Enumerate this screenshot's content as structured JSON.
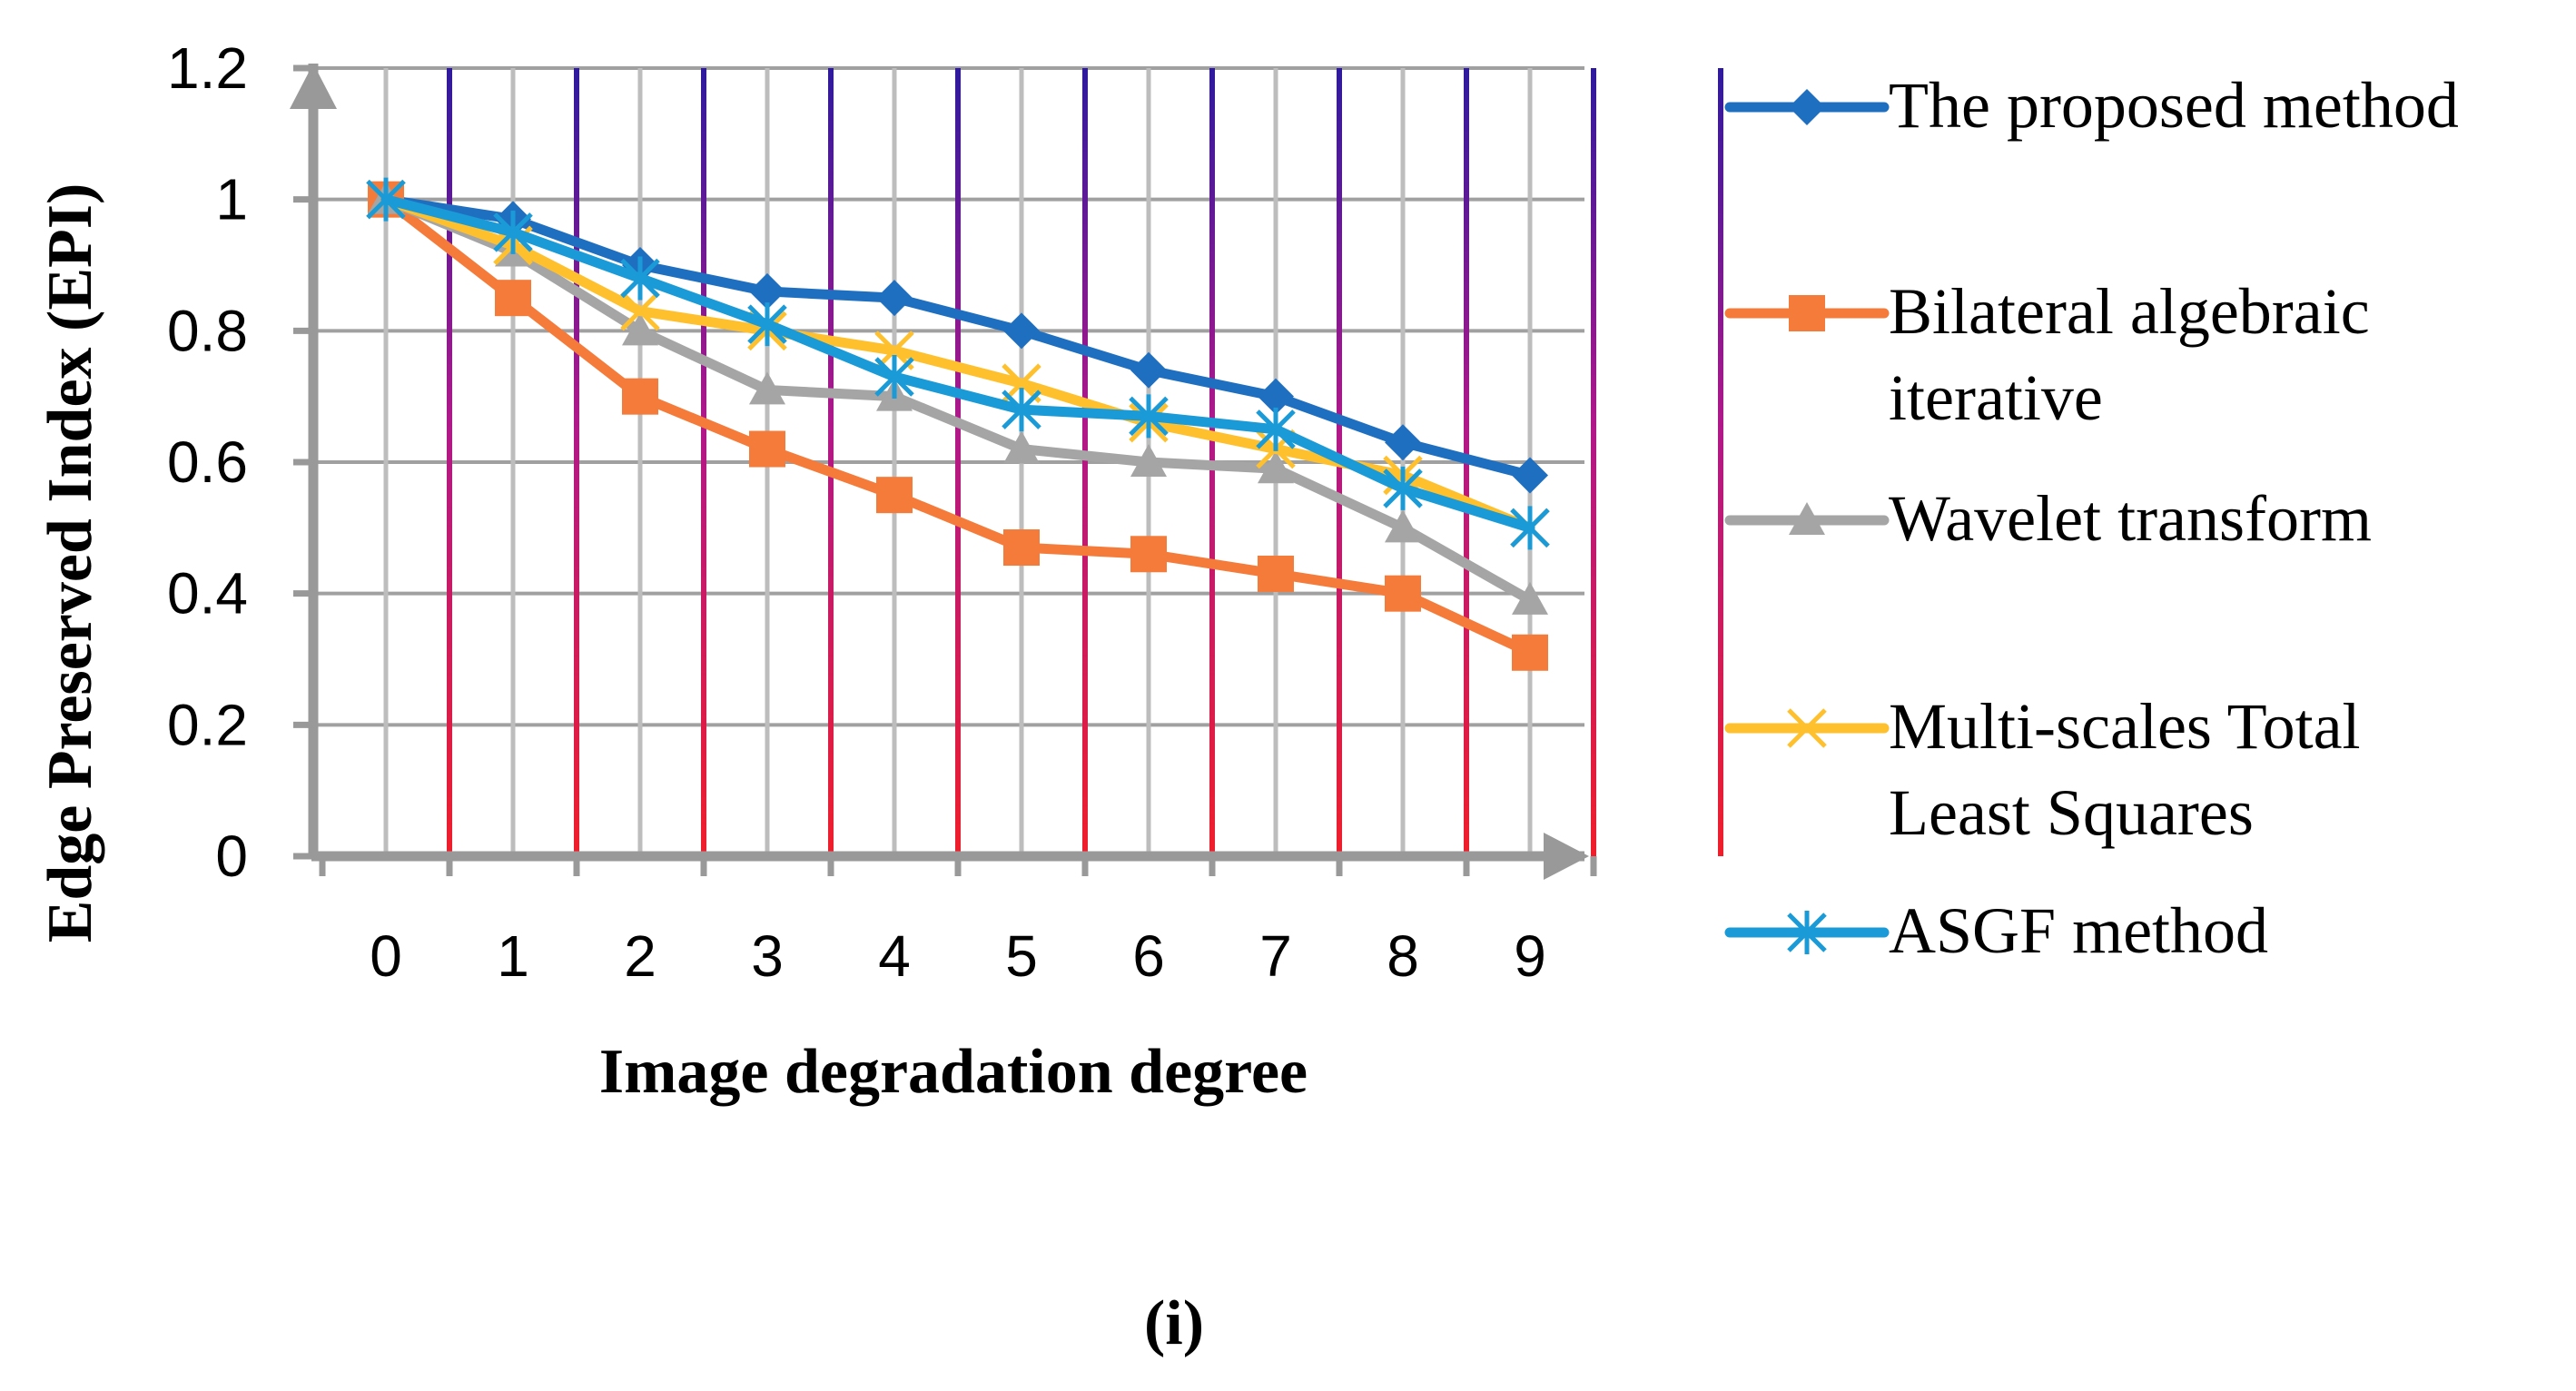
{
  "chart_data": {
    "type": "line",
    "title": "",
    "xlabel": "Image degradation degree",
    "ylabel": "Edge Preserved Index (EPI)",
    "x": [
      0,
      1,
      2,
      3,
      4,
      5,
      6,
      7,
      8,
      9
    ],
    "x_tick_labels": [
      "0",
      "1",
      "2",
      "3",
      "4",
      "5",
      "6",
      "7",
      "8",
      "9"
    ],
    "y_tick_labels": [
      "0",
      "0.2",
      "0.4",
      "0.6",
      "0.8",
      "1",
      "1.2"
    ],
    "ylim": [
      0,
      1.2
    ],
    "grid": true,
    "legend_position": "right",
    "series": [
      {
        "name": "The proposed method",
        "legend_lines": [
          "The proposed method"
        ],
        "color": "#1F6FC1",
        "marker": "diamond",
        "values": [
          1.0,
          0.97,
          0.9,
          0.86,
          0.85,
          0.8,
          0.74,
          0.7,
          0.63,
          0.58
        ]
      },
      {
        "name": "Bilateral algebraic iterative",
        "legend_lines": [
          "Bilateral algebraic",
          "iterative"
        ],
        "color": "#F47B3A",
        "marker": "square",
        "values": [
          1.0,
          0.85,
          0.7,
          0.62,
          0.55,
          0.47,
          0.46,
          0.43,
          0.4,
          0.31
        ]
      },
      {
        "name": "Wavelet transform",
        "legend_lines": [
          "Wavelet transform"
        ],
        "color": "#A5A5A5",
        "marker": "triangle",
        "values": [
          1.0,
          0.92,
          0.8,
          0.71,
          0.7,
          0.62,
          0.6,
          0.59,
          0.5,
          0.39
        ]
      },
      {
        "name": "Multi-scales Total Least Squares",
        "legend_lines": [
          "Multi-scales Total",
          "Least Squares"
        ],
        "color": "#FFC02E",
        "marker": "x",
        "values": [
          1.0,
          0.93,
          0.83,
          0.8,
          0.77,
          0.72,
          0.66,
          0.62,
          0.58,
          0.5
        ]
      },
      {
        "name": "ASGF method",
        "legend_lines": [
          "ASGF method"
        ],
        "color": "#1A9BD7",
        "marker": "asterisk",
        "values": [
          1.0,
          0.95,
          0.88,
          0.81,
          0.73,
          0.68,
          0.67,
          0.65,
          0.56,
          0.5
        ]
      }
    ]
  },
  "caption": "(i)"
}
